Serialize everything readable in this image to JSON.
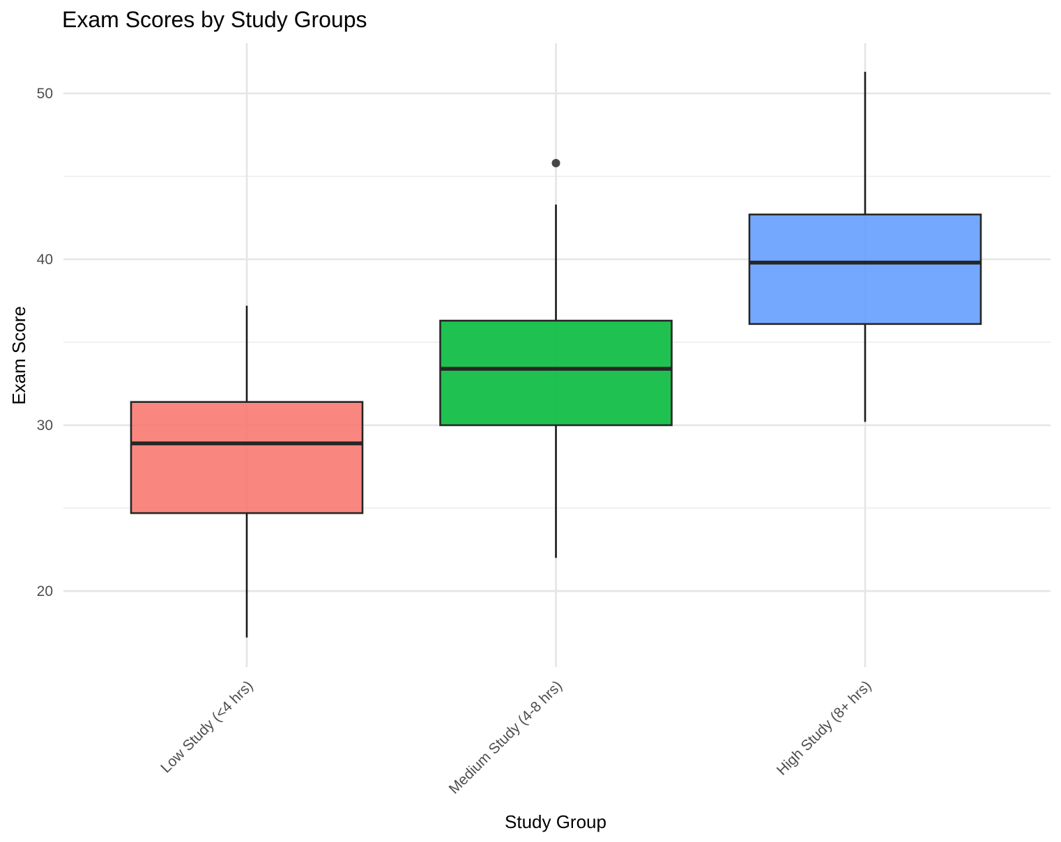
{
  "chart_data": {
    "type": "boxplot",
    "title": "Exam Scores by Study Groups",
    "xlabel": "Study Group",
    "ylabel": "Exam Score",
    "ylim": [
      15,
      53
    ],
    "yticks": [
      20,
      30,
      40,
      50
    ],
    "grid": true,
    "legend": "none",
    "categories": [
      "Low Study (<4 hrs)",
      "Medium Study (4-8 hrs)",
      "High Study (8+ hrs)"
    ],
    "boxes": [
      {
        "category": "Low Study (<4 hrs)",
        "whisker_low": 17.2,
        "q1": 24.7,
        "median": 28.9,
        "q3": 31.4,
        "whisker_high": 37.2,
        "outliers": [],
        "color": "#F8766D"
      },
      {
        "category": "Medium Study (4-8 hrs)",
        "whisker_low": 22.0,
        "q1": 30.0,
        "median": 33.4,
        "q3": 36.3,
        "whisker_high": 43.3,
        "outliers": [
          45.8
        ],
        "color": "#00BA38"
      },
      {
        "category": "High Study (8+ hrs)",
        "whisker_low": 30.2,
        "q1": 36.1,
        "median": 39.8,
        "q3": 42.7,
        "whisker_high": 51.3,
        "outliers": [],
        "color": "#619CFF"
      }
    ]
  }
}
